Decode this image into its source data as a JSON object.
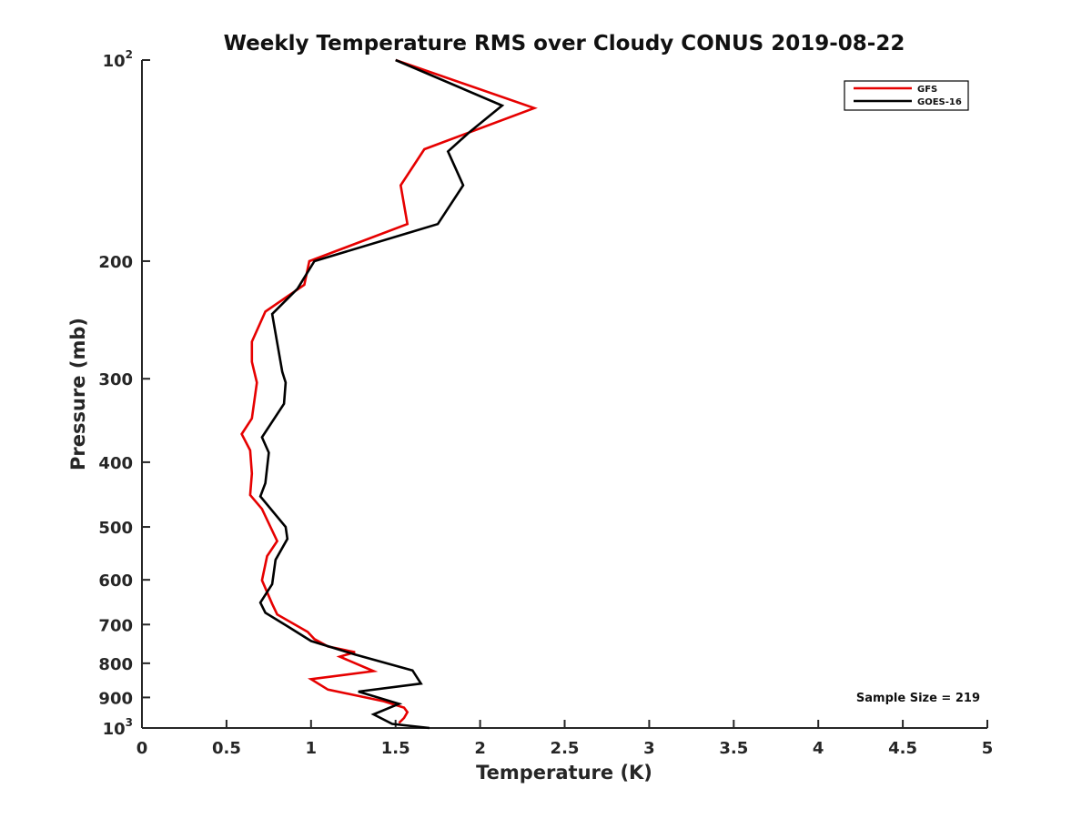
{
  "chart_data": {
    "type": "line",
    "title": "Weekly Temperature RMS over Cloudy CONUS 2019-08-22",
    "xlabel": "Temperature (K)",
    "ylabel": "Pressure (mb)",
    "xlim": [
      0,
      5
    ],
    "ylim": [
      100,
      1000
    ],
    "yscale": "log",
    "y_reversed": true,
    "grid": false,
    "legend_position": "top-right",
    "x_ticks": [
      0,
      0.5,
      1,
      1.5,
      2,
      2.5,
      3,
      3.5,
      4,
      4.5,
      5
    ],
    "x_tick_labels": [
      "0",
      "0.5",
      "1",
      "1.5",
      "2",
      "2.5",
      "3",
      "3.5",
      "4",
      "4.5",
      "5"
    ],
    "y_ticks": [
      100,
      200,
      300,
      400,
      500,
      600,
      700,
      800,
      900,
      1000
    ],
    "y_tick_labels": [
      {
        "base": "10",
        "sup": "2"
      },
      {
        "base": "200",
        "sup": ""
      },
      {
        "base": "300",
        "sup": ""
      },
      {
        "base": "400",
        "sup": ""
      },
      {
        "base": "500",
        "sup": ""
      },
      {
        "base": "600",
        "sup": ""
      },
      {
        "base": "700",
        "sup": ""
      },
      {
        "base": "800",
        "sup": ""
      },
      {
        "base": "900",
        "sup": ""
      },
      {
        "base": "10",
        "sup": "3"
      }
    ],
    "annotation": "Sample Size = 219",
    "series": [
      {
        "name": "GFS",
        "color": "#e60000",
        "points": [
          {
            "x": 1.5,
            "p": 100
          },
          {
            "x": 2.32,
            "p": 118
          },
          {
            "x": 1.67,
            "p": 136
          },
          {
            "x": 1.53,
            "p": 154
          },
          {
            "x": 1.57,
            "p": 176
          },
          {
            "x": 0.99,
            "p": 200
          },
          {
            "x": 0.96,
            "p": 217
          },
          {
            "x": 0.73,
            "p": 238
          },
          {
            "x": 0.65,
            "p": 264
          },
          {
            "x": 0.65,
            "p": 283
          },
          {
            "x": 0.68,
            "p": 304
          },
          {
            "x": 0.65,
            "p": 344
          },
          {
            "x": 0.59,
            "p": 363
          },
          {
            "x": 0.64,
            "p": 384
          },
          {
            "x": 0.65,
            "p": 416
          },
          {
            "x": 0.64,
            "p": 448
          },
          {
            "x": 0.71,
            "p": 470
          },
          {
            "x": 0.76,
            "p": 500
          },
          {
            "x": 0.8,
            "p": 525
          },
          {
            "x": 0.74,
            "p": 553
          },
          {
            "x": 0.71,
            "p": 601
          },
          {
            "x": 0.77,
            "p": 652
          },
          {
            "x": 0.8,
            "p": 676
          },
          {
            "x": 0.98,
            "p": 718
          },
          {
            "x": 1.02,
            "p": 736
          },
          {
            "x": 1.1,
            "p": 755
          },
          {
            "x": 1.26,
            "p": 770
          },
          {
            "x": 1.17,
            "p": 782
          },
          {
            "x": 1.37,
            "p": 822
          },
          {
            "x": 1.0,
            "p": 845
          },
          {
            "x": 1.1,
            "p": 876
          },
          {
            "x": 1.43,
            "p": 912
          },
          {
            "x": 1.55,
            "p": 932
          },
          {
            "x": 1.57,
            "p": 947
          },
          {
            "x": 1.55,
            "p": 966
          },
          {
            "x": 1.52,
            "p": 983
          }
        ]
      },
      {
        "name": "GOES-16",
        "color": "#000000",
        "points": [
          {
            "x": 1.5,
            "p": 100
          },
          {
            "x": 2.13,
            "p": 117
          },
          {
            "x": 1.94,
            "p": 128
          },
          {
            "x": 1.81,
            "p": 137
          },
          {
            "x": 1.9,
            "p": 154
          },
          {
            "x": 1.75,
            "p": 176
          },
          {
            "x": 1.02,
            "p": 200
          },
          {
            "x": 0.92,
            "p": 220
          },
          {
            "x": 0.77,
            "p": 240
          },
          {
            "x": 0.83,
            "p": 293
          },
          {
            "x": 0.85,
            "p": 304
          },
          {
            "x": 0.84,
            "p": 327
          },
          {
            "x": 0.71,
            "p": 367
          },
          {
            "x": 0.75,
            "p": 387
          },
          {
            "x": 0.73,
            "p": 430
          },
          {
            "x": 0.7,
            "p": 450
          },
          {
            "x": 0.85,
            "p": 500
          },
          {
            "x": 0.86,
            "p": 521
          },
          {
            "x": 0.79,
            "p": 560
          },
          {
            "x": 0.77,
            "p": 609
          },
          {
            "x": 0.7,
            "p": 649
          },
          {
            "x": 0.73,
            "p": 672
          },
          {
            "x": 0.86,
            "p": 704
          },
          {
            "x": 1.0,
            "p": 741
          },
          {
            "x": 1.26,
            "p": 776
          },
          {
            "x": 1.6,
            "p": 820
          },
          {
            "x": 1.65,
            "p": 858
          },
          {
            "x": 1.28,
            "p": 882
          },
          {
            "x": 1.52,
            "p": 920
          },
          {
            "x": 1.37,
            "p": 954
          },
          {
            "x": 1.48,
            "p": 986
          },
          {
            "x": 1.7,
            "p": 1000
          }
        ]
      }
    ]
  }
}
